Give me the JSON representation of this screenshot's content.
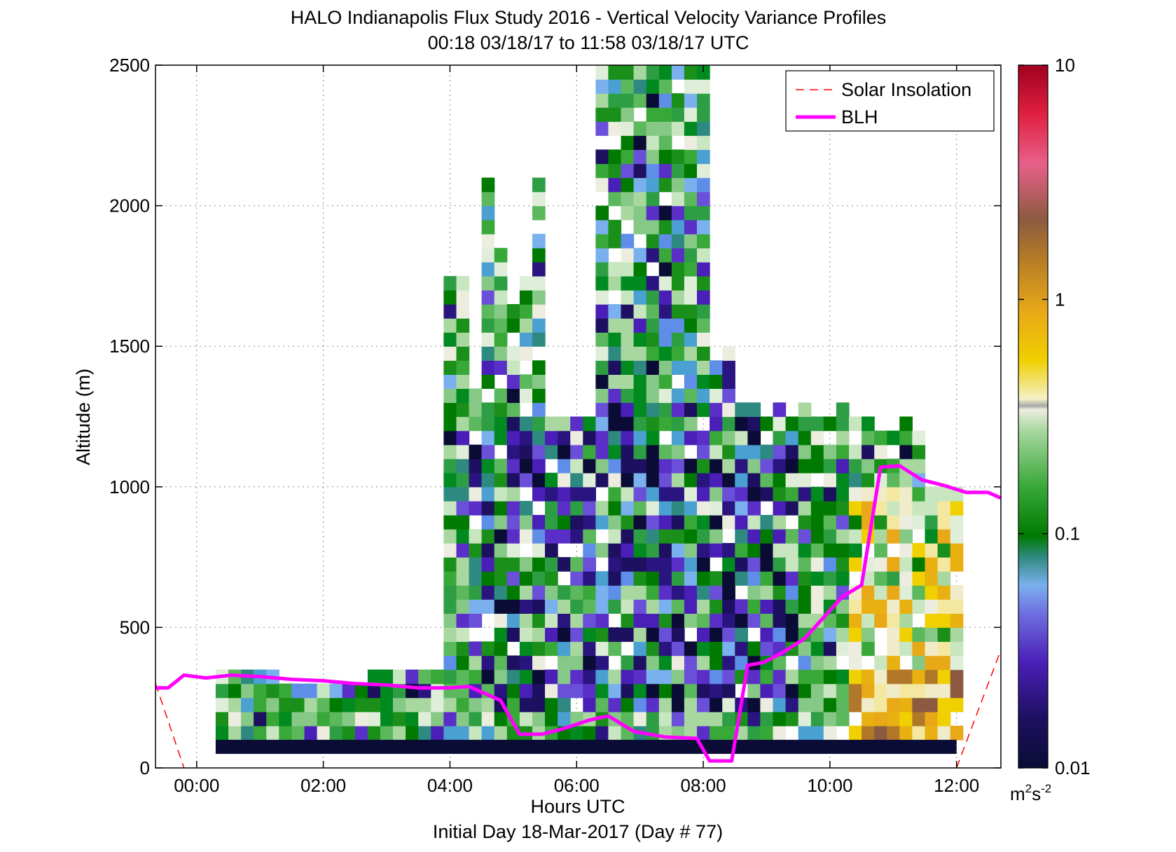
{
  "chart_data": {
    "type": "heatmap",
    "title": "HALO Indianapolis Flux Study 2016 - Vertical Velocity Variance Profiles",
    "subtitle": "00:18 03/18/17 to 11:58 03/18/17  UTC",
    "xlabel": "Hours UTC",
    "xlabel2": "Initial Day 18-Mar-2017 (Day # 77)",
    "ylabel": "Altitude (m)",
    "x_ticks": [
      "00:00",
      "02:00",
      "04:00",
      "06:00",
      "08:00",
      "10:00",
      "12:00"
    ],
    "x_tick_values": [
      0,
      2,
      4,
      6,
      8,
      10,
      12
    ],
    "y_ticks": [
      "0",
      "500",
      "1000",
      "1500",
      "2000",
      "2500"
    ],
    "y_tick_values": [
      0,
      500,
      1000,
      1500,
      2000,
      2500
    ],
    "xlim": [
      -0.65,
      12.7
    ],
    "ylim": [
      0,
      2500
    ],
    "grid": true,
    "legend_position": "top-right",
    "colorbar": {
      "scale": "log",
      "range": [
        0.01,
        10
      ],
      "ticks": [
        "0.01",
        "0.1",
        "1",
        "10"
      ],
      "tick_values": [
        0.01,
        0.1,
        1,
        10
      ],
      "unit": "m",
      "unit_sup1": "2",
      "unit_mid": "s",
      "unit_sup2": "-2"
    },
    "series": [
      {
        "name": "Solar Insolation",
        "style": "dashed",
        "color": "#ff0000",
        "x": [
          -0.65,
          -0.2,
          12.0,
          12.7
        ],
        "y": [
          300,
          0,
          0,
          420
        ]
      },
      {
        "name": "BLH",
        "style": "solid",
        "color": "#ff00ff",
        "x": [
          -0.65,
          -0.45,
          -0.2,
          0.15,
          0.55,
          1.0,
          1.5,
          2.0,
          2.5,
          3.0,
          3.5,
          4.0,
          4.3,
          4.5,
          4.8,
          5.1,
          5.45,
          5.8,
          6.2,
          6.5,
          6.9,
          7.4,
          7.9,
          8.1,
          8.45,
          8.7,
          8.95,
          9.25,
          9.6,
          10.0,
          10.2,
          10.5,
          10.8,
          11.1,
          11.45,
          11.8,
          12.15,
          12.5,
          12.7
        ],
        "y": [
          285,
          285,
          330,
          320,
          330,
          325,
          315,
          310,
          300,
          295,
          285,
          285,
          290,
          270,
          240,
          120,
          120,
          140,
          170,
          185,
          130,
          110,
          105,
          25,
          25,
          365,
          375,
          410,
          460,
          560,
          610,
          650,
          1070,
          1075,
          1025,
          1005,
          980,
          980,
          960
        ]
      }
    ]
  },
  "colors": {
    "blh": "#ff00ff",
    "solar": "#ff0000",
    "bottom_band": "#0a0c35"
  }
}
